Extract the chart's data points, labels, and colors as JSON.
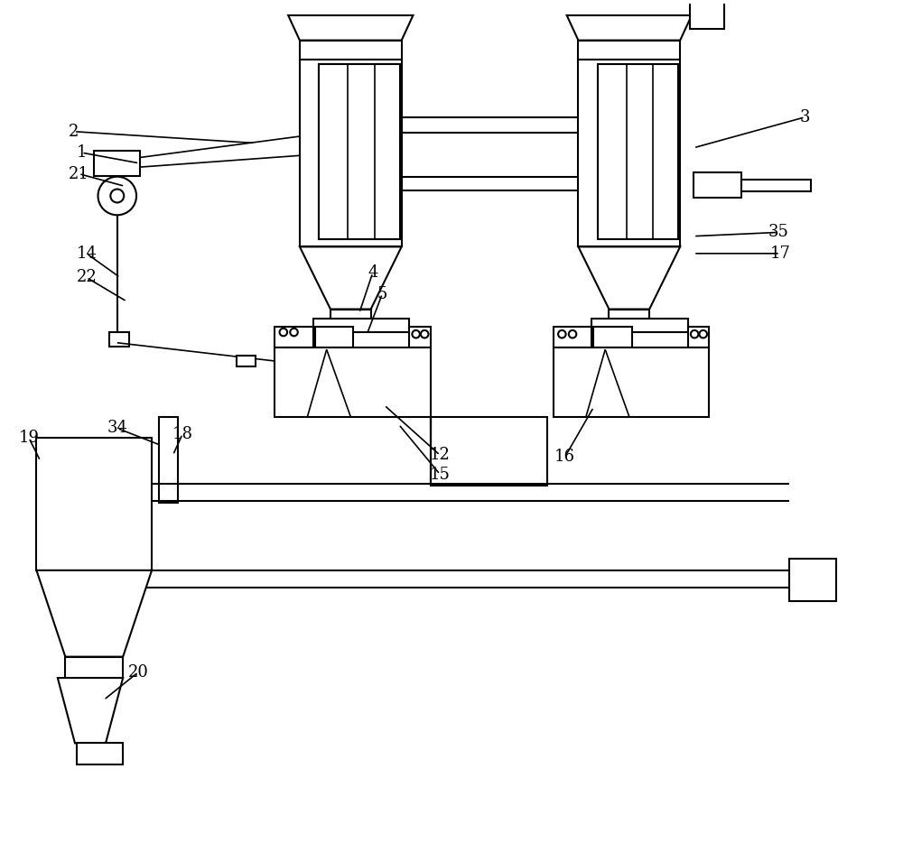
{
  "bg": "#ffffff",
  "lc": "#000000",
  "lw": 1.5,
  "lw2": 1.2,
  "fs": 13,
  "figsize": [
    10.0,
    9.34
  ],
  "dpi": 100
}
